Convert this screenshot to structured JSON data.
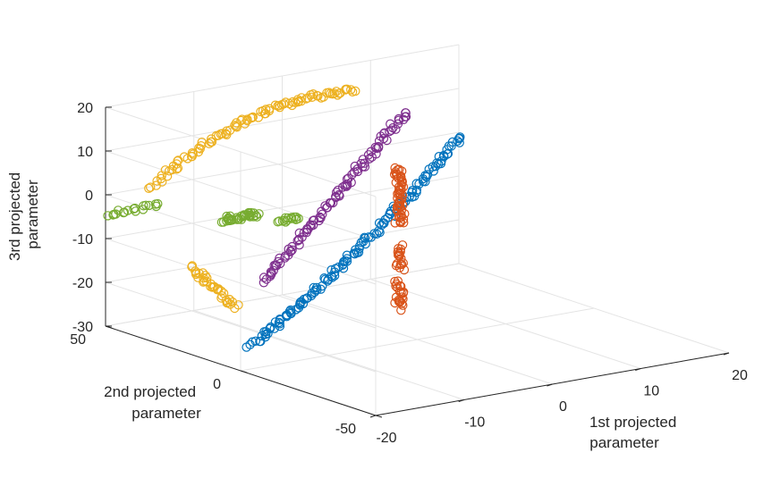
{
  "chart_data": {
    "type": "scatter3d",
    "axes": {
      "x": {
        "label": [
          "1st projected",
          "parameter"
        ],
        "ticks": [
          "-20",
          "-10",
          "0",
          "10",
          "20"
        ]
      },
      "y": {
        "label": [
          "2nd projected",
          "parameter"
        ],
        "ticks": [
          "-50",
          "0",
          "50"
        ]
      },
      "z": {
        "label": [
          "3rd projected",
          "parameter"
        ],
        "ticks": [
          "20",
          "10",
          "0",
          "-10",
          "-20",
          "-30"
        ]
      }
    },
    "grid": true,
    "marker": "open-circle",
    "series": [
      {
        "color": "#0072BD",
        "clusters": [
          {
            "from": [
              -20,
              -4,
              -23.5
            ],
            "to": [
              19,
              46,
              0.5
            ],
            "n": 140,
            "curve": "slight"
          }
        ]
      },
      {
        "color": "#D95319",
        "clusters": [
          {
            "from": [
              -2,
              0,
              10
            ],
            "to": [
              -2,
              0,
              -3
            ],
            "n": 55
          },
          {
            "from": [
              -2,
              0,
              -8
            ],
            "to": [
              -2,
              0,
              -13
            ],
            "n": 18
          },
          {
            "from": [
              -2,
              0,
              -16
            ],
            "to": [
              -2,
              0,
              -22
            ],
            "n": 22
          }
        ]
      },
      {
        "color": "#EDB120",
        "clusters": [
          {
            "from": [
              -18,
              40,
              3
            ],
            "to": [
              5,
              40,
              17
            ],
            "n": 100,
            "curve": "arc"
          },
          {
            "from": [
              -20,
              18,
              -10
            ],
            "to": [
              -15,
              18,
              -21
            ],
            "n": 35
          }
        ]
      },
      {
        "color": "#7E2F8E",
        "clusters": [
          {
            "from": [
              -19,
              -5,
              -9
            ],
            "to": [
              8,
              30,
              13
            ],
            "n": 100
          }
        ]
      },
      {
        "color": "#77AC30",
        "clusters": [
          {
            "from": [
              -29,
              20,
              5
            ],
            "to": [
              -23,
              20,
              5
            ],
            "n": 18
          },
          {
            "from": [
              -19,
              10,
              2
            ],
            "to": [
              -15,
              10,
              2
            ],
            "n": 35
          },
          {
            "from": [
              -14,
              5,
              1
            ],
            "to": [
              -12,
              5,
              1
            ],
            "n": 15
          }
        ]
      }
    ]
  }
}
